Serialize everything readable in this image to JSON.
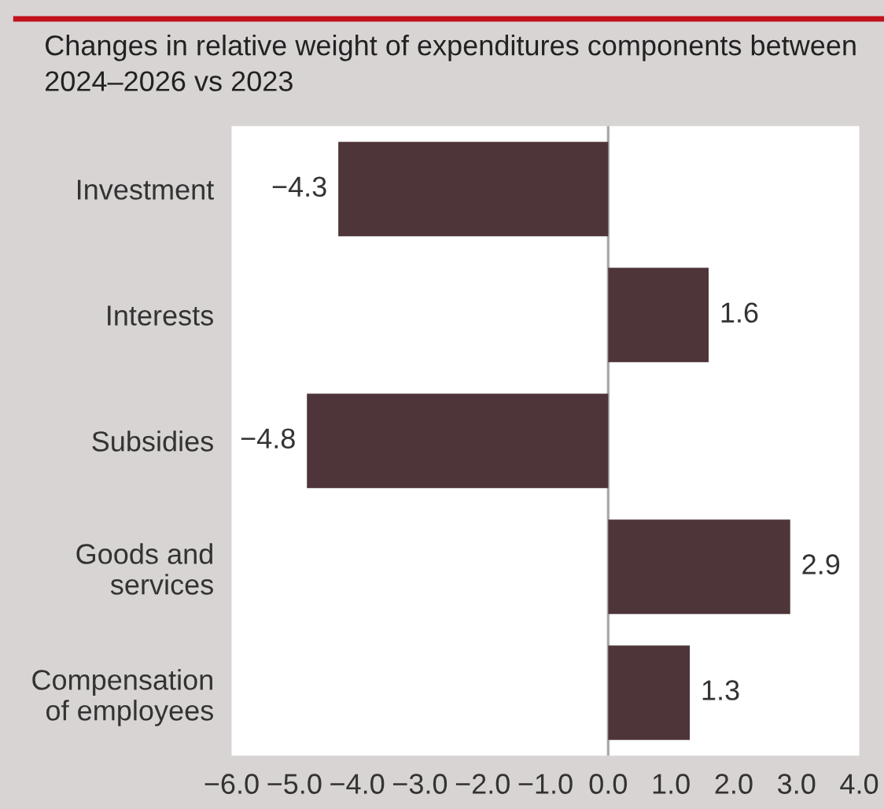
{
  "chart_data": {
    "type": "bar",
    "orientation": "horizontal",
    "title": "Changes in relative weight of expenditures components between\n2024–2026 vs 2023",
    "categories": [
      "Investment",
      "Interests",
      "Subsidies",
      "Goods and\nservices",
      "Compensation\nof employees"
    ],
    "values": [
      -4.3,
      1.6,
      -4.8,
      2.9,
      1.3
    ],
    "color": "#4e3539",
    "data_labels": true,
    "ref_lines": [
      {
        "axis": "x",
        "value": 0,
        "color": "#aaaaaa"
      }
    ],
    "xlim": [
      -6.0,
      4.0
    ],
    "xticks": [
      {
        "value": -6,
        "label": "−6.0"
      },
      {
        "value": -5,
        "label": "−5.0"
      },
      {
        "value": -4,
        "label": "−4.0"
      },
      {
        "value": -3,
        "label": "−3.0"
      },
      {
        "value": -2,
        "label": "−2.0"
      },
      {
        "value": -1,
        "label": "−1.0"
      },
      {
        "value": 0,
        "label": "0.0"
      },
      {
        "value": 1,
        "label": "1.0"
      },
      {
        "value": 2,
        "label": "2.0"
      },
      {
        "value": 3,
        "label": "3.0"
      },
      {
        "value": 4,
        "label": "4.0"
      }
    ]
  }
}
